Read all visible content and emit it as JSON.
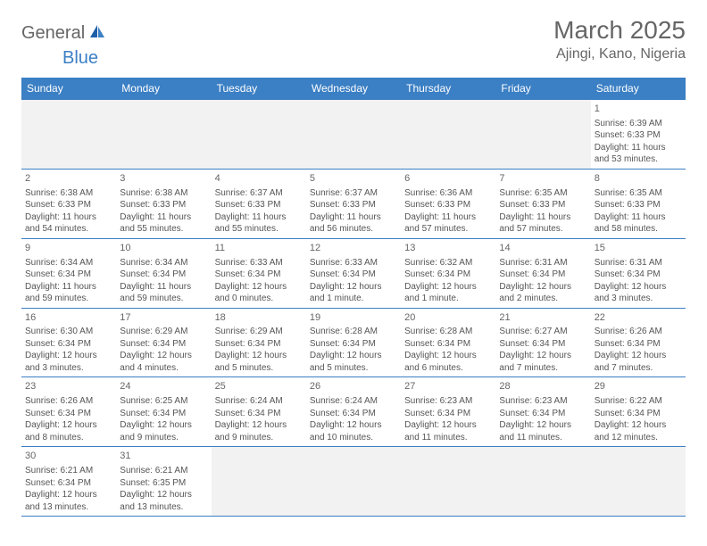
{
  "logo": {
    "text1": "General",
    "text2": "Blue"
  },
  "title": "March 2025",
  "location": "Ajingi, Kano, Nigeria",
  "colors": {
    "blue": "#3b7fc4",
    "text": "#555555",
    "bg": "#ffffff",
    "empty": "#f2f2f2"
  },
  "weekdays": [
    "Sunday",
    "Monday",
    "Tuesday",
    "Wednesday",
    "Thursday",
    "Friday",
    "Saturday"
  ],
  "grid": [
    [
      {
        "empty": true
      },
      {
        "empty": true
      },
      {
        "empty": true
      },
      {
        "empty": true
      },
      {
        "empty": true
      },
      {
        "empty": true
      },
      {
        "day": "1",
        "sunrise": "Sunrise: 6:39 AM",
        "sunset": "Sunset: 6:33 PM",
        "daylight": "Daylight: 11 hours and 53 minutes."
      }
    ],
    [
      {
        "day": "2",
        "sunrise": "Sunrise: 6:38 AM",
        "sunset": "Sunset: 6:33 PM",
        "daylight": "Daylight: 11 hours and 54 minutes."
      },
      {
        "day": "3",
        "sunrise": "Sunrise: 6:38 AM",
        "sunset": "Sunset: 6:33 PM",
        "daylight": "Daylight: 11 hours and 55 minutes."
      },
      {
        "day": "4",
        "sunrise": "Sunrise: 6:37 AM",
        "sunset": "Sunset: 6:33 PM",
        "daylight": "Daylight: 11 hours and 55 minutes."
      },
      {
        "day": "5",
        "sunrise": "Sunrise: 6:37 AM",
        "sunset": "Sunset: 6:33 PM",
        "daylight": "Daylight: 11 hours and 56 minutes."
      },
      {
        "day": "6",
        "sunrise": "Sunrise: 6:36 AM",
        "sunset": "Sunset: 6:33 PM",
        "daylight": "Daylight: 11 hours and 57 minutes."
      },
      {
        "day": "7",
        "sunrise": "Sunrise: 6:35 AM",
        "sunset": "Sunset: 6:33 PM",
        "daylight": "Daylight: 11 hours and 57 minutes."
      },
      {
        "day": "8",
        "sunrise": "Sunrise: 6:35 AM",
        "sunset": "Sunset: 6:33 PM",
        "daylight": "Daylight: 11 hours and 58 minutes."
      }
    ],
    [
      {
        "day": "9",
        "sunrise": "Sunrise: 6:34 AM",
        "sunset": "Sunset: 6:34 PM",
        "daylight": "Daylight: 11 hours and 59 minutes."
      },
      {
        "day": "10",
        "sunrise": "Sunrise: 6:34 AM",
        "sunset": "Sunset: 6:34 PM",
        "daylight": "Daylight: 11 hours and 59 minutes."
      },
      {
        "day": "11",
        "sunrise": "Sunrise: 6:33 AM",
        "sunset": "Sunset: 6:34 PM",
        "daylight": "Daylight: 12 hours and 0 minutes."
      },
      {
        "day": "12",
        "sunrise": "Sunrise: 6:33 AM",
        "sunset": "Sunset: 6:34 PM",
        "daylight": "Daylight: 12 hours and 1 minute."
      },
      {
        "day": "13",
        "sunrise": "Sunrise: 6:32 AM",
        "sunset": "Sunset: 6:34 PM",
        "daylight": "Daylight: 12 hours and 1 minute."
      },
      {
        "day": "14",
        "sunrise": "Sunrise: 6:31 AM",
        "sunset": "Sunset: 6:34 PM",
        "daylight": "Daylight: 12 hours and 2 minutes."
      },
      {
        "day": "15",
        "sunrise": "Sunrise: 6:31 AM",
        "sunset": "Sunset: 6:34 PM",
        "daylight": "Daylight: 12 hours and 3 minutes."
      }
    ],
    [
      {
        "day": "16",
        "sunrise": "Sunrise: 6:30 AM",
        "sunset": "Sunset: 6:34 PM",
        "daylight": "Daylight: 12 hours and 3 minutes."
      },
      {
        "day": "17",
        "sunrise": "Sunrise: 6:29 AM",
        "sunset": "Sunset: 6:34 PM",
        "daylight": "Daylight: 12 hours and 4 minutes."
      },
      {
        "day": "18",
        "sunrise": "Sunrise: 6:29 AM",
        "sunset": "Sunset: 6:34 PM",
        "daylight": "Daylight: 12 hours and 5 minutes."
      },
      {
        "day": "19",
        "sunrise": "Sunrise: 6:28 AM",
        "sunset": "Sunset: 6:34 PM",
        "daylight": "Daylight: 12 hours and 5 minutes."
      },
      {
        "day": "20",
        "sunrise": "Sunrise: 6:28 AM",
        "sunset": "Sunset: 6:34 PM",
        "daylight": "Daylight: 12 hours and 6 minutes."
      },
      {
        "day": "21",
        "sunrise": "Sunrise: 6:27 AM",
        "sunset": "Sunset: 6:34 PM",
        "daylight": "Daylight: 12 hours and 7 minutes."
      },
      {
        "day": "22",
        "sunrise": "Sunrise: 6:26 AM",
        "sunset": "Sunset: 6:34 PM",
        "daylight": "Daylight: 12 hours and 7 minutes."
      }
    ],
    [
      {
        "day": "23",
        "sunrise": "Sunrise: 6:26 AM",
        "sunset": "Sunset: 6:34 PM",
        "daylight": "Daylight: 12 hours and 8 minutes."
      },
      {
        "day": "24",
        "sunrise": "Sunrise: 6:25 AM",
        "sunset": "Sunset: 6:34 PM",
        "daylight": "Daylight: 12 hours and 9 minutes."
      },
      {
        "day": "25",
        "sunrise": "Sunrise: 6:24 AM",
        "sunset": "Sunset: 6:34 PM",
        "daylight": "Daylight: 12 hours and 9 minutes."
      },
      {
        "day": "26",
        "sunrise": "Sunrise: 6:24 AM",
        "sunset": "Sunset: 6:34 PM",
        "daylight": "Daylight: 12 hours and 10 minutes."
      },
      {
        "day": "27",
        "sunrise": "Sunrise: 6:23 AM",
        "sunset": "Sunset: 6:34 PM",
        "daylight": "Daylight: 12 hours and 11 minutes."
      },
      {
        "day": "28",
        "sunrise": "Sunrise: 6:23 AM",
        "sunset": "Sunset: 6:34 PM",
        "daylight": "Daylight: 12 hours and 11 minutes."
      },
      {
        "day": "29",
        "sunrise": "Sunrise: 6:22 AM",
        "sunset": "Sunset: 6:34 PM",
        "daylight": "Daylight: 12 hours and 12 minutes."
      }
    ],
    [
      {
        "day": "30",
        "sunrise": "Sunrise: 6:21 AM",
        "sunset": "Sunset: 6:34 PM",
        "daylight": "Daylight: 12 hours and 13 minutes."
      },
      {
        "day": "31",
        "sunrise": "Sunrise: 6:21 AM",
        "sunset": "Sunset: 6:35 PM",
        "daylight": "Daylight: 12 hours and 13 minutes."
      },
      {
        "empty": true
      },
      {
        "empty": true
      },
      {
        "empty": true
      },
      {
        "empty": true
      },
      {
        "empty": true
      }
    ]
  ]
}
